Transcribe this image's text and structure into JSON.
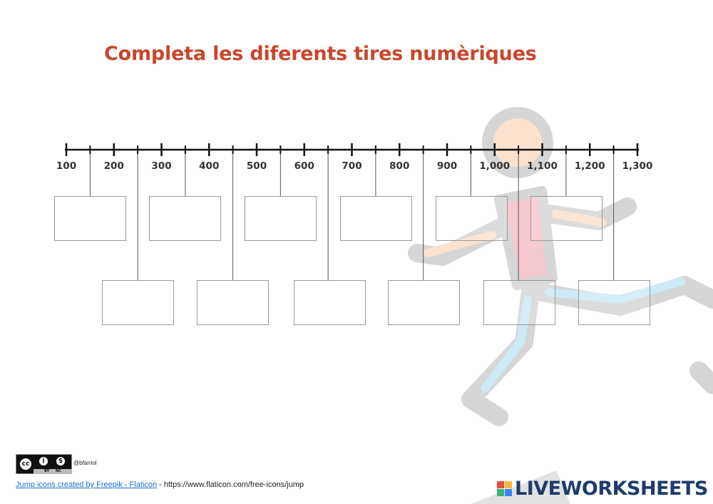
{
  "title": "Completa les diferents tires numèriques",
  "number_line": {
    "labels": [
      "100",
      "200",
      "300",
      "400",
      "500",
      "600",
      "700",
      "800",
      "900",
      "1,000",
      "1,100",
      "1,200",
      "1,300"
    ]
  },
  "answer_boxes": {
    "top_row": [
      "",
      "",
      "",
      "",
      "",
      ""
    ],
    "bottom_row": [
      "",
      "",
      "",
      "",
      "",
      ""
    ]
  },
  "footer": {
    "license_icons": [
      "cc-icon",
      "by-icon",
      "nc-icon"
    ],
    "license_cc": "cc",
    "license_by_symbol": "i",
    "license_nc_symbol": "$",
    "license_by": "BY",
    "license_nc": "NC",
    "author": "@bfarriol",
    "credit_link": "Jump icons created by Freepik - Flaticon",
    "credit_rest": " - https://www.flaticon.com/free-icons/jump"
  },
  "brand": {
    "logo_letters": "LIVE",
    "logo_text": "LIVEWORKSHEETS",
    "colors": [
      "#e94b3c",
      "#f6b73c",
      "#3cb371",
      "#3b82f6"
    ]
  },
  "colors": {
    "title": "#c8472c",
    "figure_outline": "#d6d6d6",
    "skin": "#fbe2cf",
    "shirt": "#f6c8cf",
    "pants": "#cdeaf6"
  }
}
